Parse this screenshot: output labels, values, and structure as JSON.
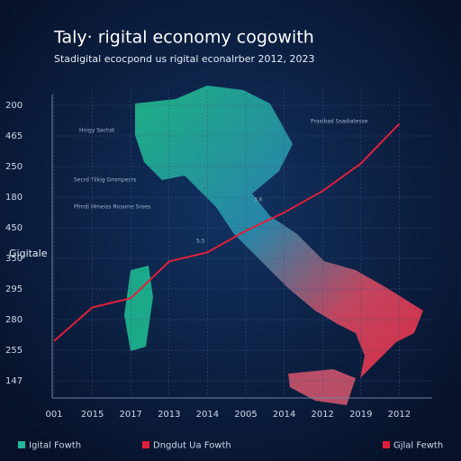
{
  "chart_data": {
    "type": "line",
    "title": "Taly· rigital economy cogowith",
    "subtitle": "Stadigital ecocpond us rigital econalrber 2012, 2023",
    "y_label": "Gigitale",
    "categories": [
      "001",
      "2015",
      "2017",
      "2013",
      "2014",
      "2005",
      "2014",
      "2012",
      "2019",
      "2012"
    ],
    "series": [
      {
        "name": "Dngdut Ua Fowth",
        "color": "#e0203a",
        "values": [
          1.3,
          2.4,
          2.7,
          3.9,
          4.2,
          4.9,
          5.5,
          6.2,
          7.1,
          8.4
        ]
      }
    ],
    "other_legend": [
      {
        "label": "Igital Fowth",
        "color": "#1fb89a"
      },
      {
        "label": "Gjlal Fewth",
        "color": "#e0203a"
      }
    ],
    "ylim": [
      -0.5,
      9.5
    ],
    "yticks": [
      {
        "value": 0,
        "label": "147"
      },
      {
        "value": 1,
        "label": "255"
      },
      {
        "value": 2,
        "label": "280"
      },
      {
        "value": 3,
        "label": "295"
      },
      {
        "value": 4,
        "label": "350"
      },
      {
        "value": 5,
        "label": "450"
      },
      {
        "value": 6,
        "label": "180"
      },
      {
        "value": 7,
        "label": "250"
      },
      {
        "value": 8,
        "label": "465"
      },
      {
        "value": 9,
        "label": "200"
      }
    ],
    "grid": true,
    "annotations": [
      "Hnigy Sachst",
      "Secrd Tiikig Gmmpecrs",
      "Pfmdi Mmeiss Rnsorre Sroes",
      "Prasibad Ssadiatesse",
      "3.6",
      "5.5"
    ]
  }
}
